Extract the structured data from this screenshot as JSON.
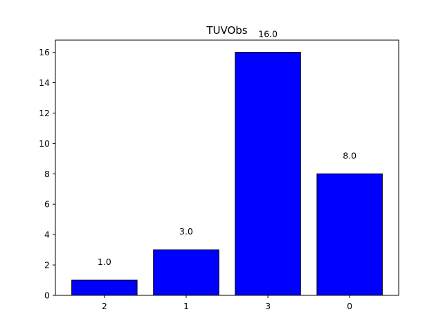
{
  "chart_data": {
    "type": "bar",
    "title": "TUVObs",
    "xlabel": "",
    "ylabel": "",
    "categories": [
      "2",
      "1",
      "3",
      "0"
    ],
    "values": [
      1.0,
      3.0,
      16.0,
      8.0
    ],
    "data_labels": [
      "1.0",
      "3.0",
      "16.0",
      "8.0"
    ],
    "ylim": [
      0,
      16.8
    ],
    "yticks": [
      0,
      2,
      4,
      6,
      8,
      10,
      12,
      14,
      16
    ],
    "ytick_labels": [
      "0",
      "2",
      "4",
      "6",
      "8",
      "10",
      "12",
      "14",
      "16"
    ],
    "bar_color": "#0000ff",
    "edge_color": "#000000",
    "grid": false,
    "legend": "none"
  }
}
